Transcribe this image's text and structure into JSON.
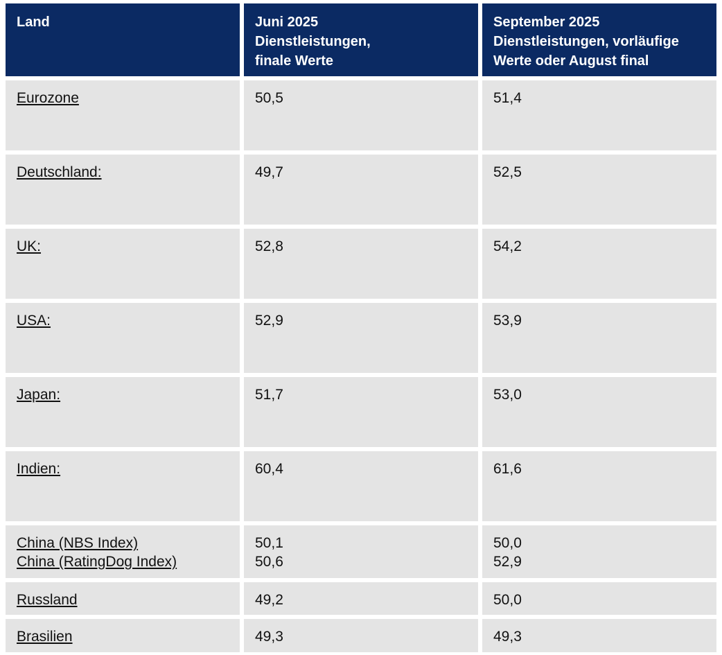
{
  "chart_data": {
    "type": "table",
    "columns": [
      "Land",
      "Juni 2025\nDienstleistungen,\nfinale Werte",
      "September 2025\nDienstleistungen, vorläufige\nWerte oder August final"
    ],
    "rows": [
      {
        "land": "Eurozone",
        "june": "50,5",
        "september": "51,4"
      },
      {
        "land": "Deutschland:",
        "june": "49,7",
        "september": "52,5"
      },
      {
        "land": "UK:",
        "june": "52,8",
        "september": "54,2"
      },
      {
        "land": "USA:",
        "june": "52,9",
        "september": "53,9"
      },
      {
        "land": "Japan:",
        "june": "51,7",
        "september": "53,0"
      },
      {
        "land": "Indien:",
        "june": "60,4",
        "september": "61,6"
      },
      {
        "land": "China (NBS Index)",
        "land2": "China (RatingDog Index)",
        "june": "50,1",
        "june2": "50,6",
        "september": "50,0",
        "september2": "52,9"
      },
      {
        "land": "Russland",
        "june": "49,2",
        "september": "50,0"
      },
      {
        "land": "Brasilien",
        "june": "49,3",
        "september": "49,3"
      }
    ]
  },
  "colors": {
    "header_bg": "#0b2a63",
    "header_text": "#ffffff",
    "cell_bg": "#e4e4e4",
    "cell_text": "#111111",
    "page_bg": "#ffffff"
  }
}
